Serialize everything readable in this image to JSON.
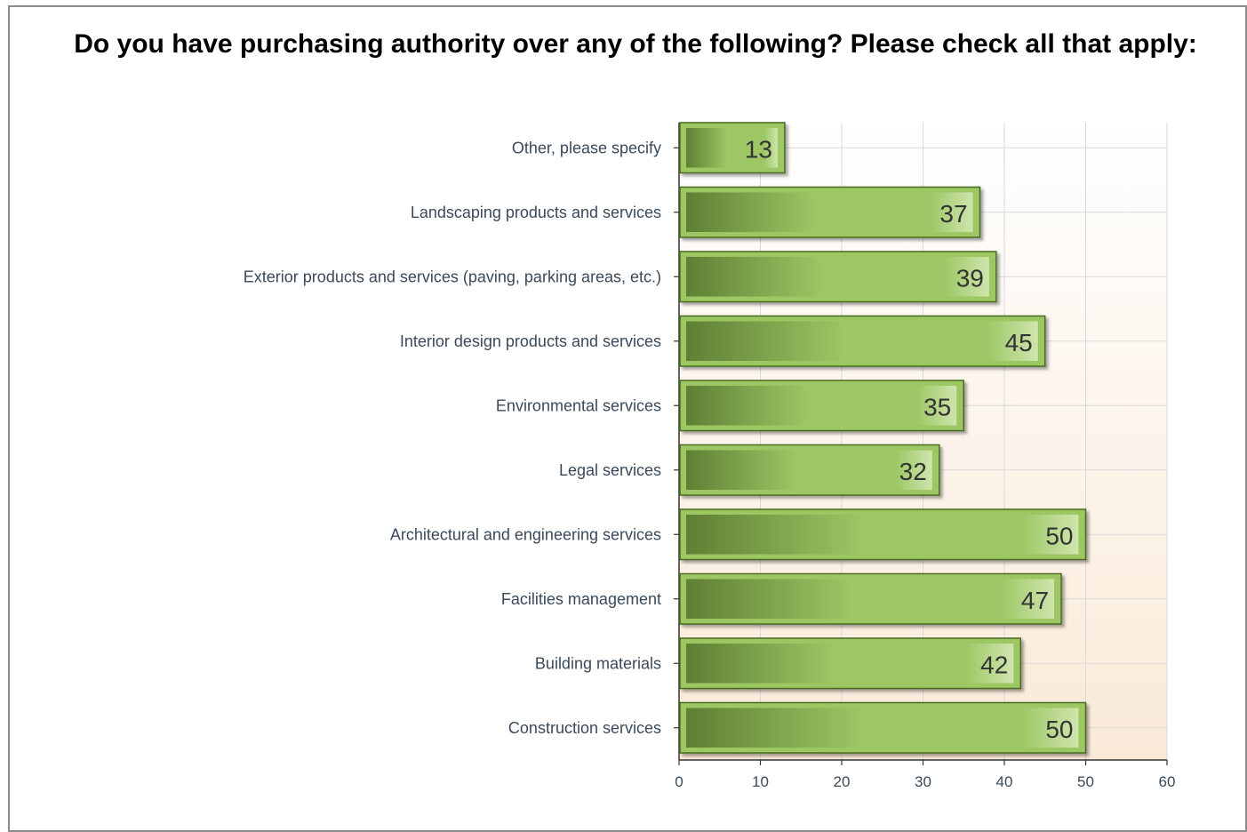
{
  "chart_data": {
    "type": "bar",
    "orientation": "horizontal",
    "title": "Do you have purchasing authority over any of the following? Please check all that apply:",
    "categories": [
      "Other, please specify",
      "Landscaping products and services",
      "Exterior products and services (paving, parking areas, etc.)",
      "Interior design products and services",
      "Environmental services",
      "Legal services",
      "Architectural and engineering services",
      "Facilities management",
      "Building materials",
      "Construction services"
    ],
    "values": [
      13,
      37,
      39,
      45,
      35,
      32,
      50,
      47,
      42,
      50
    ],
    "xlim": [
      0,
      60
    ],
    "xticks": [
      "0",
      "10",
      "20",
      "30",
      "40",
      "50",
      "60"
    ],
    "xlabel": "",
    "ylabel": "",
    "grid": true,
    "legend": "none",
    "data_labels": true,
    "colors": {
      "bar_dark": "#5f7f34",
      "bar_mid": "#9cc764",
      "bar_light": "#cfe5ad",
      "bar_border": "#4a6a22",
      "plot_bg_top": "#ffffff",
      "plot_bg_bottom": "#faead8",
      "gridline": "#d9d9d9"
    }
  }
}
